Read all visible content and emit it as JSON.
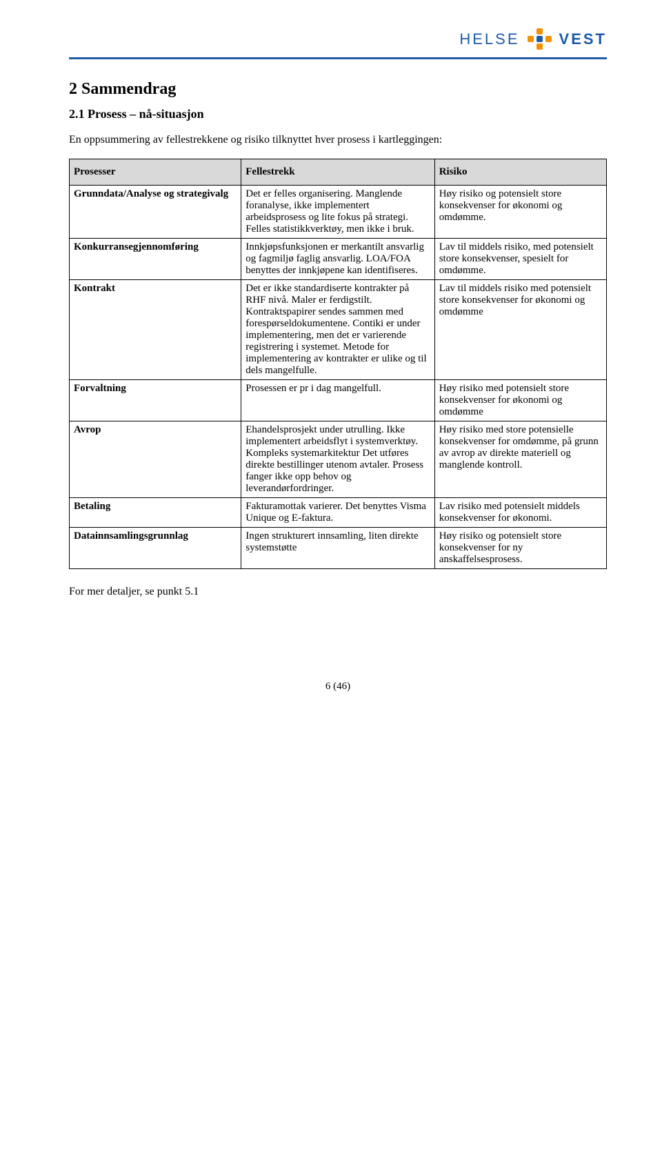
{
  "brand": {
    "word1": "HELSE",
    "word2": "VEST",
    "color_accent": "#1e5aa8",
    "color_dot_orange": "#f39200",
    "color_dot_blue": "#1e5aa8"
  },
  "headings": {
    "h2": "2   Sammendrag",
    "h3": "2.1   Prosess – nå-situasjon"
  },
  "intro": "En oppsummering av fellestrekkene og risiko tilknyttet hver prosess i kartleggingen:",
  "table": {
    "columns": [
      "Prosesser",
      "Fellestrekk",
      "Risiko"
    ],
    "header_bg": "#d9d9d9",
    "border_color": "#000000",
    "rows": [
      {
        "prosess": "Grunndata/Analyse og strategivalg",
        "fellestrekk": "Det er felles organisering. Manglende foranalyse, ikke implementert arbeidsprosess og lite fokus på strategi. Felles statistikkverktøy, men ikke i bruk.",
        "risiko": "Høy risiko og potensielt store konsekvenser for økonomi og omdømme."
      },
      {
        "prosess": "Konkurransegjennomføring",
        "fellestrekk": "Innkjøpsfunksjonen er merkantilt ansvarlig og fagmiljø faglig ansvarlig. LOA/FOA benyttes der innkjøpene kan identifiseres.",
        "risiko": "Lav til middels risiko, med potensielt store konsekvenser, spesielt for omdømme."
      },
      {
        "prosess": "Kontrakt",
        "fellestrekk": "Det er ikke standardiserte kontrakter på RHF nivå. Maler er ferdigstilt. Kontraktspapirer sendes sammen med forespørseldokumentene. Contiki er under implementering, men det er varierende registrering i systemet. Metode for implementering av kontrakter er ulike og til dels mangelfulle.",
        "risiko": "Lav til middels risiko med potensielt store konsekvenser for økonomi og omdømme"
      },
      {
        "prosess": "Forvaltning",
        "fellestrekk": "Prosessen er pr i dag mangelfull.",
        "risiko": "Høy risiko med potensielt store konsekvenser for økonomi og omdømme"
      },
      {
        "prosess": "Avrop",
        "fellestrekk": "Ehandelsprosjekt under utrulling. Ikke implementert arbeidsflyt i systemverktøy. Kompleks systemarkitektur Det utføres direkte bestillinger utenom avtaler. Prosess fanger ikke opp behov og leverandørfordringer.",
        "risiko": "Høy risiko med store potensielle konsekvenser for omdømme, på grunn av avrop av direkte materiell og manglende kontroll."
      },
      {
        "prosess": "Betaling",
        "fellestrekk": "Fakturamottak varierer. Det benyttes Visma Unique og E-faktura.",
        "risiko": "Lav risiko med potensielt middels konsekvenser for økonomi."
      },
      {
        "prosess": "Datainnsamlingsgrunnlag",
        "fellestrekk": "Ingen strukturert innsamling, liten direkte systemstøtte",
        "risiko": "Høy risiko og potensielt store konsekvenser for ny anskaffelsesprosess."
      }
    ]
  },
  "footer_text": "For mer detaljer, se punkt 5.1",
  "page_number": "6 (46)"
}
